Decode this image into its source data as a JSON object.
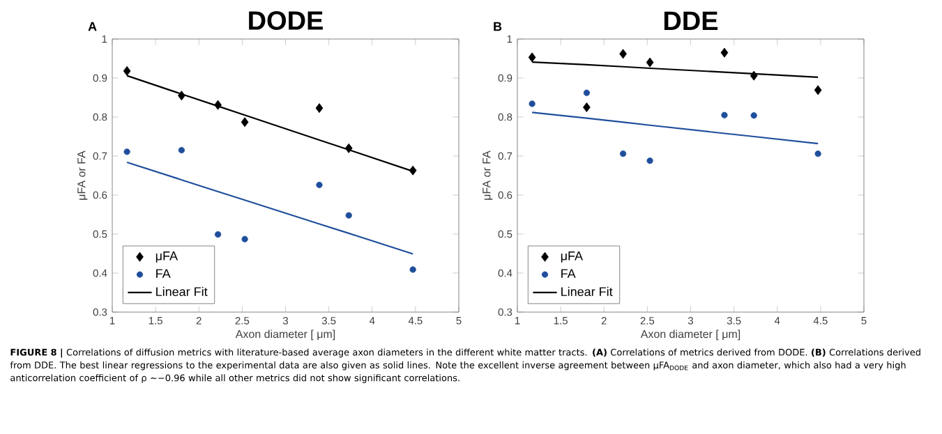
{
  "chart_data": [
    {
      "type": "scatter",
      "title": "DODE",
      "xlabel": "Axon diameter [ μm]",
      "ylabel": "μFA or FA",
      "annotations": [
        "A"
      ],
      "xlim": [
        1,
        5
      ],
      "ylim": [
        0.3,
        1
      ],
      "xticks": [
        1,
        1.5,
        2,
        2.5,
        3,
        3.5,
        4,
        4.5,
        5
      ],
      "yticks": [
        0.3,
        0.4,
        0.5,
        0.6,
        0.7,
        0.8,
        0.9,
        1
      ],
      "legend": "bottom left",
      "x": [
        1.17,
        1.8,
        2.22,
        2.53,
        3.39,
        3.73,
        4.47
      ],
      "series": [
        {
          "name": "μFA",
          "color": "#000000",
          "marker": "diamond",
          "values": [
            0.918,
            0.855,
            0.831,
            0.787,
            0.823,
            0.72,
            0.663
          ]
        },
        {
          "name": "FA",
          "color": "#1f4e9c",
          "marker": "circle",
          "values": [
            0.711,
            0.715,
            0.499,
            0.487,
            0.626,
            0.548,
            0.409
          ]
        },
        {
          "name": "Linear Fit",
          "type": "line",
          "color": "#000000",
          "line_style": "solid",
          "values": [
            0.906,
            0.859,
            0.828,
            0.805,
            0.741,
            0.716,
            0.661
          ]
        },
        {
          "type": "line",
          "color": "#1f4e9c",
          "line_style": "solid",
          "values": [
            0.684,
            0.639,
            0.609,
            0.587,
            0.526,
            0.502,
            0.449
          ]
        }
      ]
    },
    {
      "type": "scatter",
      "title": "DDE",
      "xlabel": "Axon diameter [ μm]",
      "ylabel": "μFA or FA",
      "annotations": [
        "B"
      ],
      "xlim": [
        1,
        5
      ],
      "ylim": [
        0.3,
        1
      ],
      "xticks": [
        1,
        1.5,
        2,
        2.5,
        3,
        3.5,
        4,
        4.5,
        5
      ],
      "yticks": [
        0.3,
        0.4,
        0.5,
        0.6,
        0.7,
        0.8,
        0.9,
        1
      ],
      "legend": "bottom left",
      "x": [
        1.17,
        1.8,
        2.22,
        2.53,
        3.39,
        3.73,
        4.47
      ],
      "series": [
        {
          "name": "μFA",
          "color": "#000000",
          "marker": "diamond",
          "values": [
            0.953,
            0.825,
            0.962,
            0.94,
            0.965,
            0.906,
            0.869
          ]
        },
        {
          "name": "FA",
          "color": "#1f4e9c",
          "marker": "circle",
          "values": [
            0.834,
            0.862,
            0.706,
            0.688,
            0.805,
            0.804,
            0.706
          ]
        },
        {
          "name": "Linear Fit",
          "type": "line",
          "color": "#000000",
          "line_style": "solid",
          "values": [
            0.941,
            0.934,
            0.929,
            0.925,
            0.915,
            0.911,
            0.902
          ]
        },
        {
          "type": "line",
          "color": "#1f4e9c",
          "line_style": "solid",
          "values": [
            0.812,
            0.797,
            0.787,
            0.779,
            0.758,
            0.75,
            0.732
          ]
        }
      ]
    },
    {
      "type": "other",
      "annotations": [
        "**FIGURE 8 |** Correlations of diffusion metrics with literature-based average axon diameters in the different white matter tracts. **(A)** Correlations of metrics derived from DODE. **(B)** Correlations derived from DDE. The best linear regressions to the experimental data are also given as solid lines. Note the excellent inverse agreement between μFA$_{DODE}$ and axon diameter, which also had a very high anticorrelation coefficient of ρ ∼−0.96 while all other metrics did not show significant correlations."
      ]
    }
  ]
}
